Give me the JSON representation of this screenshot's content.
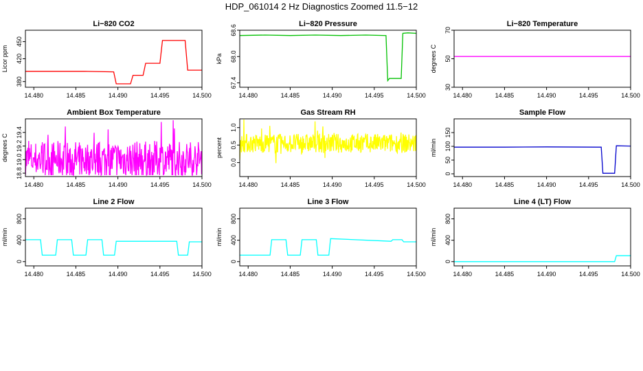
{
  "page": {
    "title": "HDP_061014  2 Hz Diagnostics Zoomed 11.5−12"
  },
  "chart_data": [
    {
      "type": "line",
      "title": "Li−820 CO2",
      "ylabel": "Licor ppm",
      "color": "#ff0000",
      "xlim": [
        14.479,
        14.5
      ],
      "ylim": [
        370,
        470
      ],
      "xticks": [
        "14.480",
        "14.485",
        "14.490",
        "14.495",
        "14.500"
      ],
      "xtick_values": [
        14.48,
        14.485,
        14.49,
        14.495,
        14.5
      ],
      "yticks": [
        "380",
        "420",
        "450"
      ],
      "ytick_values": [
        380,
        420,
        450
      ],
      "series": [
        {
          "x": [
            14.479,
            14.48,
            14.483,
            14.486,
            14.4895,
            14.4898,
            14.4915,
            14.4918,
            14.493,
            14.4933,
            14.495,
            14.4953,
            14.498,
            14.4983,
            14.5
          ],
          "y": [
            398,
            398,
            398,
            398,
            397,
            376,
            376,
            391,
            391,
            412,
            412,
            452,
            452,
            400,
            400
          ]
        }
      ]
    },
    {
      "type": "line",
      "title": "Li−820 Pressure",
      "ylabel": "kPa",
      "color": "#00c000",
      "xlim": [
        14.479,
        14.5
      ],
      "ylim": [
        67.3,
        68.6
      ],
      "xticks": [
        "14.480",
        "14.485",
        "14.490",
        "14.495",
        "14.500"
      ],
      "xtick_values": [
        14.48,
        14.485,
        14.49,
        14.495,
        14.5
      ],
      "yticks": [
        "67.4",
        "68.0",
        "68.6"
      ],
      "ytick_values": [
        67.4,
        68.0,
        68.6
      ],
      "series": [
        {
          "x": [
            14.479,
            14.482,
            14.485,
            14.488,
            14.491,
            14.494,
            14.4964,
            14.4966,
            14.4968,
            14.4982,
            14.4984,
            14.499,
            14.5
          ],
          "y": [
            68.48,
            68.49,
            68.48,
            68.49,
            68.48,
            68.49,
            68.48,
            67.45,
            67.5,
            67.5,
            68.53,
            68.54,
            68.53
          ]
        }
      ]
    },
    {
      "type": "line",
      "title": "Li−820 Temperature",
      "ylabel": "degrees C",
      "color": "#ff00ff",
      "xlim": [
        14.479,
        14.5
      ],
      "ylim": [
        30,
        70
      ],
      "xticks": [
        "14.480",
        "14.485",
        "14.490",
        "14.495",
        "14.500"
      ],
      "xtick_values": [
        14.48,
        14.485,
        14.49,
        14.495,
        14.5
      ],
      "yticks": [
        "30",
        "50",
        "70"
      ],
      "ytick_values": [
        30,
        50,
        70
      ],
      "series": [
        {
          "x": [
            14.479,
            14.5
          ],
          "y": [
            51.6,
            51.6
          ]
        }
      ]
    },
    {
      "type": "line",
      "title": "Ambient Box Temperature",
      "ylabel": "degrees C",
      "color": "#ff00ff",
      "xlim": [
        14.479,
        14.5
      ],
      "ylim": [
        18.75,
        19.6
      ],
      "xticks": [
        "14.480",
        "14.485",
        "14.490",
        "14.495",
        "14.500"
      ],
      "xtick_values": [
        14.48,
        14.485,
        14.49,
        14.495,
        14.5
      ],
      "yticks": [
        "18.8",
        "19.0",
        "19.2",
        "19.4"
      ],
      "ytick_values": [
        18.8,
        19.0,
        19.2,
        19.4
      ],
      "series": [
        {
          "x": [
            14.479,
            14.5
          ],
          "y": [
            18.85,
            19.45
          ]
        }
      ]
    },
    {
      "type": "line",
      "title": "Gas Stream RH",
      "ylabel": "percent",
      "color": "#ffff00",
      "xlim": [
        14.479,
        14.5
      ],
      "ylim": [
        -0.4,
        1.25
      ],
      "xticks": [
        "14.480",
        "14.485",
        "14.490",
        "14.495",
        "14.500"
      ],
      "xtick_values": [
        14.48,
        14.485,
        14.49,
        14.495,
        14.5
      ],
      "yticks": [
        "0.0",
        "0.5",
        "1.0"
      ],
      "ytick_values": [
        0.0,
        0.5,
        1.0
      ],
      "series": [
        {
          "x": [
            14.479,
            14.5
          ],
          "y": [
            0.1,
            1.05
          ]
        }
      ]
    },
    {
      "type": "line",
      "title": "Sample Flow",
      "ylabel": "ml/min",
      "color": "#0000cc",
      "xlim": [
        14.479,
        14.5
      ],
      "ylim": [
        -10,
        200
      ],
      "xticks": [
        "14.480",
        "14.485",
        "14.490",
        "14.495",
        "14.500"
      ],
      "xtick_values": [
        14.48,
        14.485,
        14.49,
        14.495,
        14.5
      ],
      "yticks": [
        "0",
        "50",
        "100",
        "150"
      ],
      "ytick_values": [
        0,
        50,
        100,
        150
      ],
      "series": [
        {
          "x": [
            14.479,
            14.485,
            14.49,
            14.496,
            14.4965,
            14.4967,
            14.4981,
            14.4983,
            14.5
          ],
          "y": [
            97,
            97,
            98,
            97,
            97,
            2,
            2,
            102,
            101
          ]
        }
      ]
    },
    {
      "type": "line",
      "title": "Line 2 Flow",
      "ylabel": "ml/min",
      "color": "#00ffff",
      "xlim": [
        14.479,
        14.5
      ],
      "ylim": [
        -80,
        1000
      ],
      "xticks": [
        "14.480",
        "14.485",
        "14.490",
        "14.495",
        "14.500"
      ],
      "xtick_values": [
        14.48,
        14.485,
        14.49,
        14.495,
        14.5
      ],
      "yticks": [
        "0",
        "400",
        "800"
      ],
      "ytick_values": [
        0,
        400,
        800
      ],
      "series": [
        {
          "x": [
            14.479,
            14.4808,
            14.481,
            14.4826,
            14.4828,
            14.4845,
            14.4847,
            14.4862,
            14.4864,
            14.4881,
            14.4883,
            14.4896,
            14.4898,
            14.497,
            14.4972,
            14.4983,
            14.4985,
            14.5
          ],
          "y": [
            410,
            410,
            120,
            120,
            410,
            410,
            120,
            120,
            410,
            410,
            120,
            120,
            380,
            380,
            120,
            120,
            370,
            370
          ]
        }
      ]
    },
    {
      "type": "line",
      "title": "Line 3 Flow",
      "ylabel": "ml/min",
      "color": "#00ffff",
      "xlim": [
        14.479,
        14.5
      ],
      "ylim": [
        -80,
        1000
      ],
      "xticks": [
        "14.480",
        "14.485",
        "14.490",
        "14.495",
        "14.500"
      ],
      "xtick_values": [
        14.48,
        14.485,
        14.49,
        14.495,
        14.5
      ],
      "yticks": [
        "0",
        "400",
        "800"
      ],
      "ytick_values": [
        0,
        400,
        800
      ],
      "series": [
        {
          "x": [
            14.479,
            14.4826,
            14.4828,
            14.4845,
            14.4847,
            14.4862,
            14.4864,
            14.4881,
            14.4883,
            14.4896,
            14.4898,
            14.497,
            14.4972,
            14.4983,
            14.4985,
            14.5
          ],
          "y": [
            120,
            120,
            410,
            410,
            120,
            120,
            410,
            410,
            120,
            120,
            430,
            380,
            410,
            410,
            370,
            370
          ]
        }
      ]
    },
    {
      "type": "line",
      "title": "Line 4 (LT) Flow",
      "ylabel": "ml/min",
      "color": "#00ffff",
      "xlim": [
        14.479,
        14.5
      ],
      "ylim": [
        -80,
        1000
      ],
      "xticks": [
        "14.480",
        "14.485",
        "14.490",
        "14.495",
        "14.500"
      ],
      "xtick_values": [
        14.48,
        14.485,
        14.49,
        14.495,
        14.5
      ],
      "yticks": [
        "0",
        "400",
        "800"
      ],
      "ytick_values": [
        0,
        400,
        800
      ],
      "series": [
        {
          "x": [
            14.479,
            14.4981,
            14.4983,
            14.5
          ],
          "y": [
            0,
            0,
            110,
            110
          ]
        }
      ]
    }
  ]
}
